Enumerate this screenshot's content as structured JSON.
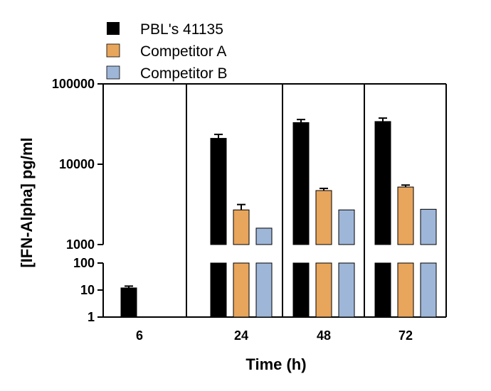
{
  "chart_data": {
    "type": "bar",
    "xlabel": "Time (h)",
    "ylabel": "[IFN-Alpha] pg/ml",
    "categories": [
      "6",
      "24",
      "48",
      "72"
    ],
    "y_scale": "log",
    "y_axis_break": true,
    "y_segments": [
      {
        "range": [
          1,
          100
        ],
        "ticks": [
          1,
          10,
          100
        ]
      },
      {
        "range": [
          1000,
          100000
        ],
        "ticks": [
          1000,
          10000,
          100000
        ]
      }
    ],
    "legend_position": "top-left",
    "series": [
      {
        "name": "PBL's 41135",
        "color": "#000000",
        "values": [
          12,
          21000,
          33000,
          34000
        ],
        "error": [
          2,
          2500,
          3000,
          3500
        ]
      },
      {
        "name": "Competitor A",
        "color": "#E8A55C",
        "values": [
          null,
          2700,
          4700,
          5200
        ],
        "error": [
          null,
          450,
          300,
          300
        ]
      },
      {
        "name": "Competitor B",
        "color": "#9EB6D8",
        "values": [
          null,
          1600,
          2700,
          2750
        ],
        "error": [
          null,
          0,
          0,
          0
        ]
      }
    ]
  }
}
